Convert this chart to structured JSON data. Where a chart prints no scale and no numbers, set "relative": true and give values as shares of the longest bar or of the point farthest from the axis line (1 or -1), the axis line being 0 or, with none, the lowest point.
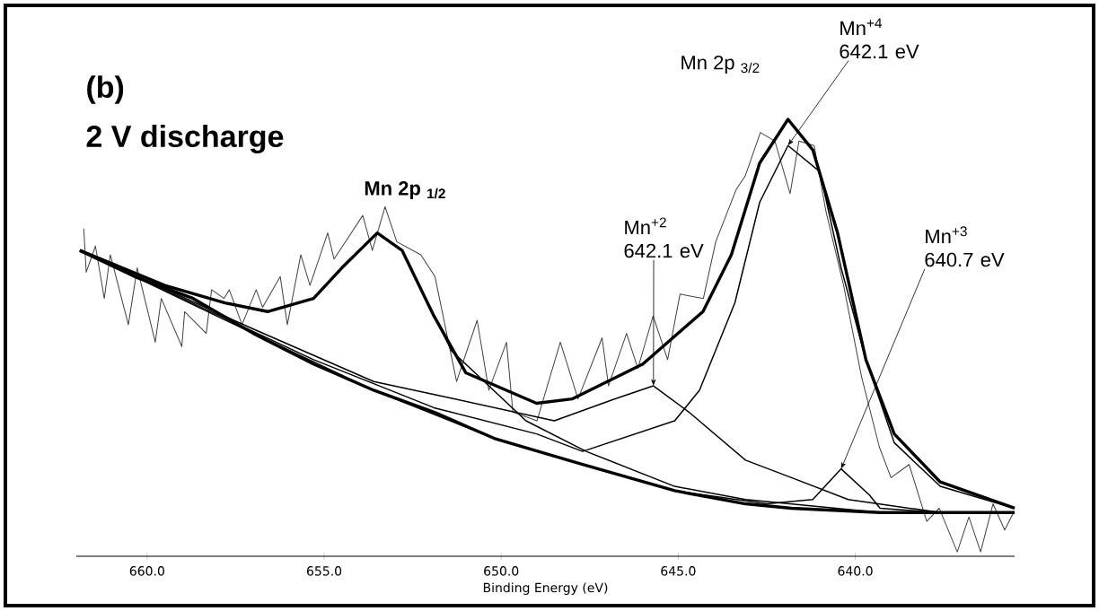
{
  "chart_data": {
    "type": "line",
    "relative": true,
    "xlabel": "Binding Energy (eV)",
    "xlim": [
      662,
      635.5
    ],
    "xticks": [
      {
        "value": 660,
        "label": "660.0"
      },
      {
        "value": 655,
        "label": "655.0"
      },
      {
        "value": 650,
        "label": "650.0"
      },
      {
        "value": 645,
        "label": "645.0"
      },
      {
        "value": 640,
        "label": "640.0"
      }
    ],
    "annotations": [
      "(b)",
      "2 V discharge",
      "Mn 2p $_{1/2}$",
      "Mn 2p $_{3/2}$",
      "Mn$^{+4}$ 642.1 eV",
      "Mn$^{+2}$ 642.1 eV",
      {
        "text": "Mn$^{+3}$ 640.7 eV",
        "x": 640.4,
        "y": 0.2
      }
    ],
    "series": [
      {
        "color": "#404040",
        "x": [
          661.79,
          661.72,
          661.46,
          661.21,
          661.04,
          660.53,
          660.28,
          659.77,
          659.6,
          659.02,
          658.94,
          658.33,
          658.18,
          657.83,
          657.68,
          657.32,
          656.92,
          656.74,
          656.24,
          656.04,
          655.66,
          655.4,
          654.9,
          654.72,
          653.91,
          653.64,
          653.28,
          652.95,
          652.27,
          651.87,
          651.26,
          650.68,
          650.35,
          649.85,
          649.67,
          648.99,
          648.33,
          647.83,
          647.15,
          646.97,
          646.46,
          646.14,
          645.71,
          645.3,
          644.95,
          644.29,
          643.94,
          643.36,
          643.11,
          642.68,
          642.27,
          641.84,
          641.59,
          641.16,
          640.83,
          640.33,
          639.82,
          639.32,
          638.99,
          638.48,
          637.98,
          637.63,
          637.12,
          636.79,
          636.46,
          636.11,
          635.78,
          635.53
        ],
        "values": [
          0.75,
          0.65,
          0.71,
          0.59,
          0.69,
          0.53,
          0.66,
          0.49,
          0.59,
          0.48,
          0.56,
          0.51,
          0.61,
          0.59,
          0.61,
          0.53,
          0.61,
          0.57,
          0.64,
          0.53,
          0.69,
          0.62,
          0.74,
          0.68,
          0.78,
          0.7,
          0.8,
          0.72,
          0.69,
          0.64,
          0.4,
          0.54,
          0.38,
          0.49,
          0.33,
          0.31,
          0.49,
          0.36,
          0.5,
          0.39,
          0.51,
          0.43,
          0.55,
          0.45,
          0.6,
          0.59,
          0.72,
          0.84,
          0.87,
          0.97,
          0.95,
          0.83,
          0.95,
          0.94,
          0.79,
          0.62,
          0.41,
          0.25,
          0.18,
          0.21,
          0.08,
          0.11,
          0.01,
          0.09,
          0.01,
          0.12,
          0.06,
          0.1
        ]
      },
      {
        "color": "#000000",
        "x": [
          661.9,
          660.35,
          658.7,
          657.0,
          655.3,
          653.6,
          651.9,
          650.2,
          647.7,
          645.1,
          643.1,
          641.8,
          639.3,
          635.5
        ],
        "values": [
          0.7,
          0.64,
          0.59,
          0.51,
          0.44,
          0.38,
          0.33,
          0.27,
          0.21,
          0.15,
          0.12,
          0.11,
          0.1,
          0.1
        ]
      },
      {
        "color": "#000000",
        "x": [
          661.9,
          659.5,
          657.8,
          656.6,
          655.3,
          654.5,
          653.5,
          652.8,
          651.4,
          649.3,
          647.6,
          645.1,
          643.1,
          639.3,
          635.5
        ],
        "values": [
          0.7,
          0.62,
          0.58,
          0.56,
          0.59,
          0.66,
          0.74,
          0.7,
          0.47,
          0.31,
          0.24,
          0.16,
          0.13,
          0.1,
          0.1
        ]
      },
      {
        "color": "#000000",
        "x": [
          661.9,
          657.0,
          653.6,
          651.3,
          648.5,
          646.8,
          645.7,
          644.7,
          643.1,
          641.8,
          640.2,
          637.6,
          635.5
        ],
        "values": [
          0.7,
          0.52,
          0.4,
          0.36,
          0.31,
          0.36,
          0.39,
          0.33,
          0.22,
          0.18,
          0.13,
          0.1,
          0.1
        ]
      },
      {
        "color": "#000000",
        "x": [
          661.9,
          655.3,
          651.9,
          649.0,
          647.7,
          645.1,
          644.4,
          643.4,
          642.7,
          641.9,
          641.0,
          640.4,
          639.7,
          638.9,
          637.6,
          635.5
        ],
        "values": [
          0.7,
          0.45,
          0.34,
          0.28,
          0.24,
          0.31,
          0.38,
          0.58,
          0.81,
          0.94,
          0.88,
          0.66,
          0.45,
          0.26,
          0.16,
          0.11
        ]
      },
      {
        "color": "#000000",
        "x": [
          661.9,
          657.0,
          653.6,
          650.2,
          647.7,
          645.1,
          642.5,
          641.2,
          640.4,
          639.6,
          639.3,
          637.6,
          635.5
        ],
        "values": [
          0.7,
          0.51,
          0.38,
          0.27,
          0.21,
          0.15,
          0.12,
          0.13,
          0.2,
          0.14,
          0.11,
          0.1,
          0.1
        ]
      },
      {
        "color": "#000000",
        "x": [
          661.9,
          659.5,
          657.8,
          656.6,
          655.3,
          654.5,
          653.5,
          652.8,
          651.9,
          651.0,
          649.0,
          648.0,
          646.0,
          644.3,
          643.5,
          642.7,
          641.9,
          641.2,
          640.5,
          639.7,
          638.9,
          637.6,
          635.5
        ],
        "values": [
          0.7,
          0.62,
          0.58,
          0.56,
          0.59,
          0.66,
          0.74,
          0.7,
          0.55,
          0.42,
          0.35,
          0.36,
          0.44,
          0.56,
          0.69,
          0.9,
          1.0,
          0.93,
          0.74,
          0.45,
          0.28,
          0.17,
          0.11
        ]
      }
    ]
  }
}
